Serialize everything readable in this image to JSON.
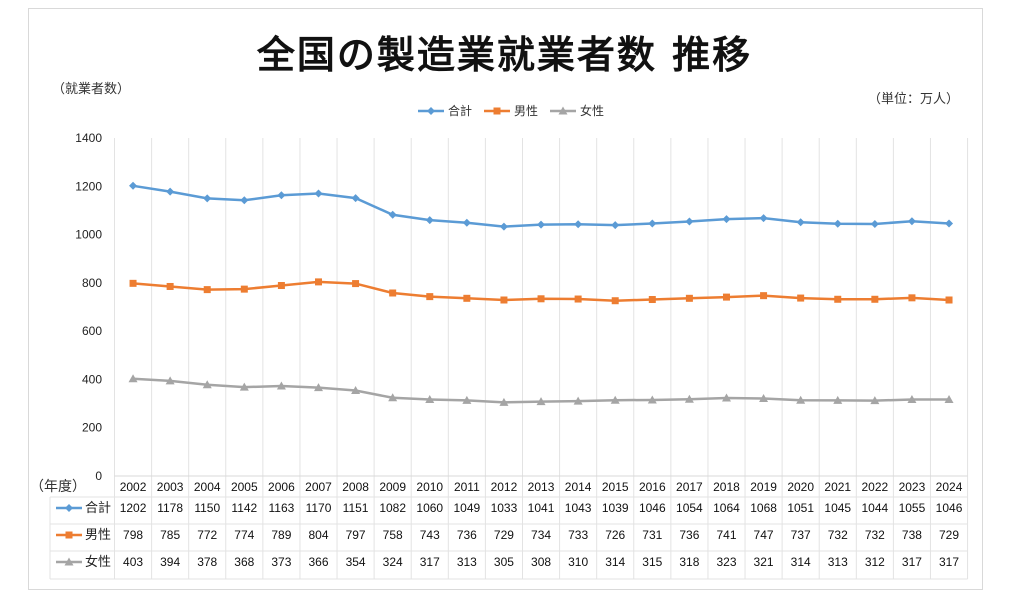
{
  "title": "全国の製造業就業者数 推移",
  "ylabel": "（就業者数）",
  "unit": "（単位：万人）",
  "xlabel": "（年度）",
  "chart_data": {
    "type": "line",
    "title": "全国の製造業就業者数 推移",
    "ylabel": "就業者数",
    "unit": "単位：万人",
    "xlabel": "年度",
    "ylim": [
      0,
      1400
    ],
    "yticks": [
      0,
      200,
      400,
      600,
      800,
      1000,
      1200,
      1400
    ],
    "legend_position": "top-center",
    "categories": [
      "2002",
      "2003",
      "2004",
      "2005",
      "2006",
      "2007",
      "2008",
      "2009",
      "2010",
      "2011",
      "2012",
      "2013",
      "2014",
      "2015",
      "2016",
      "2017",
      "2018",
      "2019",
      "2020",
      "2021",
      "2022",
      "2023",
      "2024"
    ],
    "series": [
      {
        "name": "合計",
        "color": "#5b9bd5",
        "marker": "diamond",
        "values": [
          1202,
          1178,
          1150,
          1142,
          1163,
          1170,
          1151,
          1082,
          1060,
          1049,
          1033,
          1041,
          1043,
          1039,
          1046,
          1054,
          1064,
          1068,
          1051,
          1045,
          1044,
          1055,
          1046
        ]
      },
      {
        "name": "男性",
        "color": "#ed7d31",
        "marker": "square",
        "values": [
          798,
          785,
          772,
          774,
          789,
          804,
          797,
          758,
          743,
          736,
          729,
          734,
          733,
          726,
          731,
          736,
          741,
          747,
          737,
          732,
          732,
          738,
          729
        ]
      },
      {
        "name": "女性",
        "color": "#a5a5a5",
        "marker": "triangle",
        "values": [
          403,
          394,
          378,
          368,
          373,
          366,
          354,
          324,
          317,
          313,
          305,
          308,
          310,
          314,
          315,
          318,
          323,
          321,
          314,
          313,
          312,
          317,
          317
        ]
      }
    ]
  }
}
